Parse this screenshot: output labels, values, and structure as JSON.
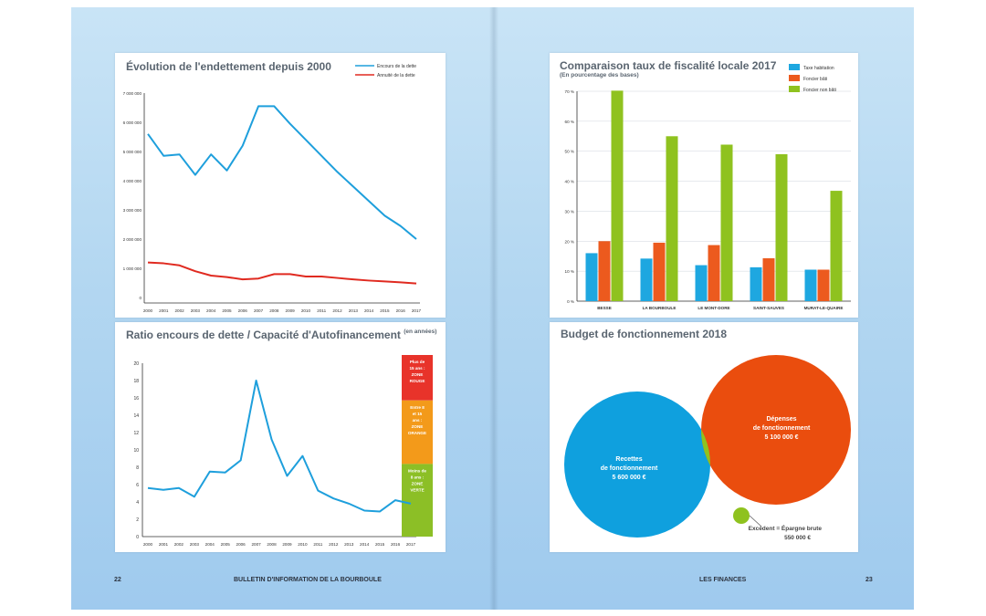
{
  "left_page": {
    "page_number": "22",
    "footer_title": "BULLETIN D'INFORMATION DE LA BOURBOULE"
  },
  "right_page": {
    "page_number": "23",
    "footer_title": "LES FINANCES"
  },
  "colors": {
    "blue": "#1e9fdc",
    "red": "#e02a20",
    "orange": "#ec5a1e",
    "green": "#8fc21f",
    "scale_red": "#e8332a",
    "scale_orange": "#f39a1a",
    "scale_green": "#8cbf26"
  },
  "chart_data": [
    {
      "type": "line",
      "title": "Évolution de l'endettement depuis 2000",
      "xlabel": "",
      "ylabel": "",
      "x": [
        "2000",
        "2001",
        "2002",
        "2003",
        "2004",
        "2005",
        "2006",
        "2007",
        "2008",
        "2009",
        "2010",
        "2011",
        "2012",
        "2013",
        "2014",
        "2015",
        "2016",
        "2017"
      ],
      "y_ticks": [
        "0",
        "1 000 000",
        "2 000 000",
        "3 000 000",
        "4 000 000",
        "5 000 000",
        "6 000 000",
        "7 000 000"
      ],
      "ylim": [
        0,
        7000000
      ],
      "grid": false,
      "legend_position": "top-right",
      "series": [
        {
          "name": "Encours de la dette",
          "color": "#1e9fdc",
          "values": [
            5600000,
            4850000,
            4900000,
            4200000,
            4900000,
            4350000,
            5200000,
            6550000,
            6550000,
            5950000,
            5400000,
            4850000,
            4300000,
            3800000,
            3300000,
            2800000,
            2450000,
            2000000
          ]
        },
        {
          "name": "Annuité de la dette",
          "color": "#e02a20",
          "values": [
            1200000,
            1170000,
            1100000,
            900000,
            750000,
            700000,
            620000,
            650000,
            800000,
            800000,
            720000,
            720000,
            670000,
            620000,
            580000,
            550000,
            520000,
            480000
          ]
        }
      ]
    },
    {
      "type": "line",
      "title": "Ratio encours de dette / Capacité d'Autofinancement",
      "title_suffix": "(en années)",
      "xlabel": "",
      "ylabel": "",
      "x": [
        "2000",
        "2001",
        "2002",
        "2003",
        "2004",
        "2005",
        "2006",
        "2007",
        "2008",
        "2009",
        "2010",
        "2011",
        "2012",
        "2013",
        "2014",
        "2015",
        "2016",
        "2017"
      ],
      "y_ticks": [
        "0",
        "2",
        "4",
        "6",
        "8",
        "10",
        "12",
        "14",
        "16",
        "18",
        "20"
      ],
      "ylim": [
        0,
        20
      ],
      "grid": false,
      "series": [
        {
          "color": "#1e9fdc",
          "values": [
            5.6,
            5.4,
            5.6,
            4.6,
            7.5,
            7.4,
            8.8,
            18,
            11.2,
            7,
            9.3,
            5.3,
            4.4,
            3.8,
            3,
            2.9,
            4.2,
            3.8
          ]
        }
      ],
      "scale_bands": [
        {
          "label": "Plus de 15 ans : ZONE ROUGE",
          "from": 15,
          "to": 20,
          "color": "#e8332a"
        },
        {
          "label": "Entre 8 et 15 ans : ZONE ORANGE",
          "from": 8,
          "to": 15,
          "color": "#f39a1a"
        },
        {
          "label": "Moins de 8 ans : ZONE VERTE",
          "from": 0,
          "to": 8,
          "color": "#8cbf26"
        }
      ]
    },
    {
      "type": "bar",
      "title": "Comparaison taux de fiscalité locale 2017",
      "subtitle": "(En pourcentage des bases)",
      "xlabel": "",
      "ylabel": "",
      "categories": [
        "BESSE",
        "LA BOURBOULE",
        "LE MONT-DORE",
        "SAINT-SAUVES",
        "MURAT-LE-QUAIRE"
      ],
      "y_ticks": [
        "0 %",
        "10 %",
        "20 %",
        "30 %",
        "40 %",
        "50 %",
        "60 %",
        "70 %"
      ],
      "ylim": [
        0,
        70
      ],
      "grid": true,
      "legend_position": "top-right",
      "series": [
        {
          "name": "Taxe habitation",
          "color": "#1ea7e0",
          "values": [
            16,
            14.2,
            12,
            11.3,
            10.5
          ]
        },
        {
          "name": "Foncier bâti",
          "color": "#ec5a1e",
          "values": [
            20,
            19.5,
            18.7,
            14.3,
            10.5
          ]
        },
        {
          "name": "Foncier non bâti",
          "color": "#8fc21f",
          "values": [
            70.2,
            55,
            52.2,
            49,
            36.8
          ]
        }
      ]
    }
  ],
  "budget": {
    "title": "Budget de fonctionnement 2018",
    "recettes": {
      "label_1": "Recettes",
      "label_2": "de fonctionnement",
      "amount": "5 600 000 €",
      "value": 5600000,
      "color": "#0fa0de"
    },
    "depenses": {
      "label_1": "Dépenses",
      "label_2": "de fonctionnement",
      "amount": "5 100 000 €",
      "value": 5100000,
      "color": "#ea4d0e"
    },
    "excedent": {
      "label": "Excédent = Épargne brute",
      "amount": "550 000 €",
      "value": 550000,
      "color": "#8fc21f"
    }
  }
}
